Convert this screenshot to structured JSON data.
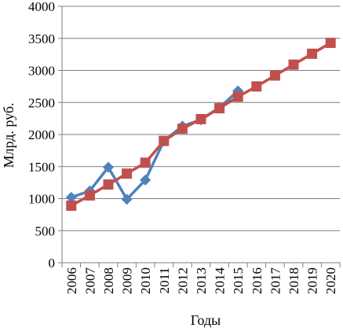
{
  "chart_data": {
    "type": "line",
    "title": "",
    "xlabel": "Годы",
    "ylabel": "Млрд. руб.",
    "categories": [
      "2006",
      "2007",
      "2008",
      "2009",
      "2010",
      "2011",
      "2012",
      "2013",
      "2014",
      "2015",
      "2016",
      "2017",
      "2018",
      "2019",
      "2020"
    ],
    "ylim": [
      0,
      4000
    ],
    "yticks": [
      0,
      500,
      1000,
      1500,
      2000,
      2500,
      3000,
      3500,
      4000
    ],
    "grid": true,
    "legend": "none",
    "series": [
      {
        "marker": "diamond",
        "color": "#4f81bd",
        "values": [
          1020,
          1120,
          1490,
          990,
          1290,
          1900,
          2130,
          2230,
          2420,
          2680,
          null,
          null,
          null,
          null,
          null
        ]
      },
      {
        "marker": "square",
        "color": "#c0504d",
        "values": [
          890,
          1050,
          1220,
          1390,
          1560,
          1900,
          2090,
          2240,
          2410,
          2590,
          2750,
          2920,
          3090,
          3260,
          3430
        ]
      }
    ]
  }
}
